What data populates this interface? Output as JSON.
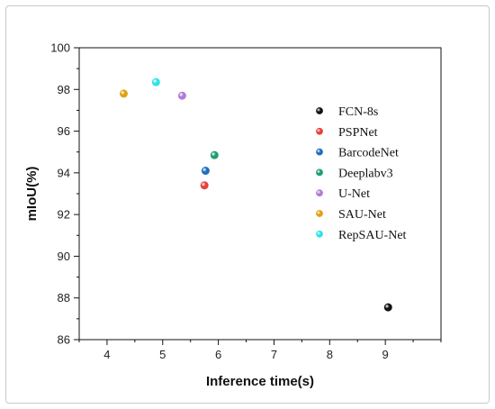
{
  "chart_data": {
    "type": "scatter",
    "title": "",
    "xlabel": "Inference time(s)",
    "ylabel": "mIoU(%)",
    "xlim": [
      3.5,
      10
    ],
    "ylim": [
      86,
      100
    ],
    "xticks": [
      4,
      5,
      6,
      7,
      8,
      9
    ],
    "yticks": [
      86,
      88,
      90,
      92,
      94,
      96,
      98,
      100
    ],
    "grid": false,
    "legend_position": "right",
    "series": [
      {
        "name": "FCN-8s",
        "color": "#111111",
        "x": [
          9.05
        ],
        "y": [
          87.55
        ]
      },
      {
        "name": "PSPNet",
        "color": "#e8403a",
        "x": [
          5.75
        ],
        "y": [
          93.4
        ]
      },
      {
        "name": "BarcodeNet",
        "color": "#1f6fc0",
        "x": [
          5.77
        ],
        "y": [
          94.1
        ]
      },
      {
        "name": "Deeplabv3",
        "color": "#1f9e6e",
        "x": [
          5.93
        ],
        "y": [
          94.85
        ]
      },
      {
        "name": "U-Net",
        "color": "#b57ad9",
        "x": [
          5.35
        ],
        "y": [
          97.7
        ]
      },
      {
        "name": "SAU-Net",
        "color": "#e0a10e",
        "x": [
          4.3
        ],
        "y": [
          97.8
        ]
      },
      {
        "name": "RepSAU-Net",
        "color": "#2fe3e8",
        "x": [
          4.88
        ],
        "y": [
          98.35
        ]
      }
    ]
  }
}
